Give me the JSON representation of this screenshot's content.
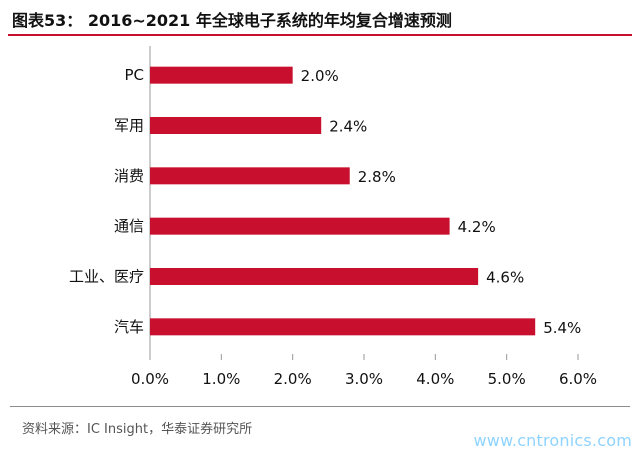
{
  "title": "图表53： 2016~2021 年全球电子系统的年均复合增速预测",
  "source": "资料来源：IC Insight，华泰证券研究所",
  "watermark": "www.cntronics.com",
  "chart_data": {
    "type": "bar",
    "orientation": "horizontal",
    "categories": [
      "PC",
      "军用",
      "消费",
      "通信",
      "工业、医疗",
      "汽车"
    ],
    "values": [
      2.0,
      2.4,
      2.8,
      4.2,
      4.6,
      5.4
    ],
    "data_labels": [
      "2.0%",
      "2.4%",
      "2.8%",
      "4.2%",
      "4.6%",
      "5.4%"
    ],
    "xlim": [
      0,
      6
    ],
    "x_ticks": [
      0,
      1,
      2,
      3,
      4,
      5,
      6
    ],
    "x_tick_labels": [
      "0.0%",
      "1.0%",
      "2.0%",
      "3.0%",
      "4.0%",
      "5.0%",
      "6.0%"
    ],
    "bar_color": "#c8102e",
    "grid": false,
    "legend": "none"
  }
}
